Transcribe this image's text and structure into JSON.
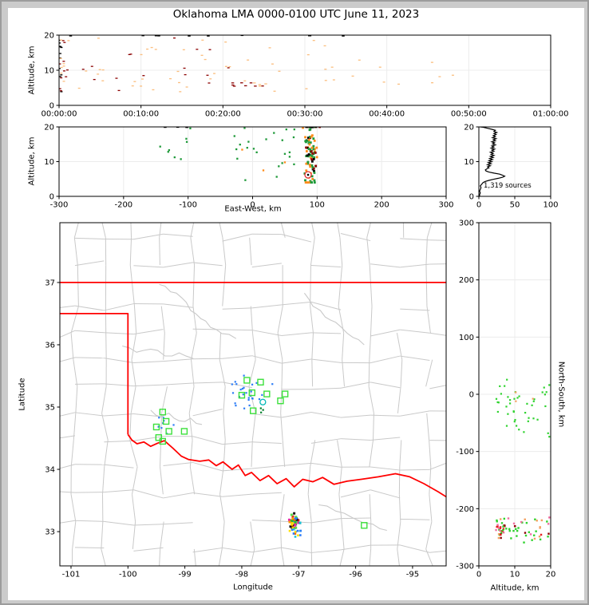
{
  "title": "Oklahoma LMA 0000-0100 UTC June 11, 2023",
  "palette": {
    "light_orange": "#FBBE7E",
    "dark_red": "#8B0000",
    "black": "#000000",
    "green": "#1F9A3A",
    "orange": "#FF8C1A",
    "lime": "#3CE03C",
    "blue": "#2D7DF6",
    "teal": "#00B8B8",
    "grid": "#ECECEC",
    "county": "#C9C9C9",
    "state_red": "#FF0000",
    "frame_bg": "#CBCBCB",
    "frame_border": "#9C9C9C",
    "hist_line": "#000000"
  },
  "chart_data": [
    {
      "id": "time_height_panel",
      "type": "scatter",
      "xlabel": "",
      "ylabel": "Altitude, km",
      "xlim": [
        0,
        3600
      ],
      "ylim": [
        0,
        20
      ],
      "xticks": [
        0,
        600,
        1200,
        1800,
        2400,
        3000,
        3600
      ],
      "xticklabels": [
        "00:00:00",
        "00:10:00",
        "00:20:00",
        "00:30:00",
        "00:40:00",
        "00:50:00",
        "01:00:00"
      ],
      "yticks": [
        0,
        10,
        20
      ],
      "clusters": [
        {
          "n": 14,
          "x": [
            2,
            18
          ],
          "y": [
            3.5,
            19.2
          ],
          "colors": [
            "#000000",
            "#8B0000",
            "#000000"
          ],
          "w": 3,
          "h": 1.3
        },
        {
          "n": 16,
          "x": [
            12,
            70
          ],
          "y": [
            4,
            19
          ],
          "colors": [
            "#FBBE7E",
            "#FBBE7E",
            "#8B0000"
          ],
          "w": 3,
          "h": 1.3
        },
        {
          "n": 46,
          "x": [
            80,
            1250
          ],
          "y": [
            3.8,
            19.4
          ],
          "colors": [
            "#FBBE7E",
            "#FBBE7E",
            "#FBBE7E",
            "#8B0000"
          ],
          "w": 3,
          "h": 1.3
        },
        {
          "n": 12,
          "x": [
            1260,
            1560
          ],
          "y": [
            5.4,
            6.6
          ],
          "colors": [
            "#FBBE7E",
            "#FBBE7E",
            "#8B0000"
          ],
          "w": 3.5,
          "h": 1.3
        },
        {
          "n": 14,
          "x": [
            1300,
            2120
          ],
          "y": [
            4,
            19.5
          ],
          "colors": [
            "#FBBE7E"
          ],
          "w": 3,
          "h": 1.3
        },
        {
          "n": 9,
          "x": [
            2140,
            2900
          ],
          "y": [
            6,
            13.5
          ],
          "colors": [
            "#FBBE7E"
          ],
          "w": 3,
          "h": 1.3
        },
        {
          "n": 10,
          "x": [
            30,
            2150
          ],
          "y": [
            19.75,
            19.95
          ],
          "colors": [
            "#000000"
          ],
          "w": 3.5,
          "h": 1.5
        }
      ]
    },
    {
      "id": "ew_height_panel",
      "type": "scatter",
      "xlabel": "East-West, km",
      "ylabel": "Altitude, km",
      "xlim": [
        -300,
        300
      ],
      "ylim": [
        0,
        20
      ],
      "xticks": [
        -300,
        -200,
        -100,
        0,
        100,
        200,
        300
      ],
      "yticks": [
        0,
        10,
        20
      ],
      "clusters": [
        {
          "n": 8,
          "x": [
            -150,
            -95
          ],
          "y": [
            10,
            19.8
          ],
          "colors": [
            "#1F9A3A"
          ],
          "w": 2.3,
          "h": 2.3
        },
        {
          "n": 26,
          "x": [
            -30,
            65
          ],
          "y": [
            4.5,
            19.8
          ],
          "colors": [
            "#1F9A3A",
            "#1F9A3A",
            "#1F9A3A",
            "#1F9A3A",
            "#FF8C1A"
          ],
          "w": 2.3,
          "h": 2.3
        },
        {
          "n": 95,
          "cx": 90,
          "cy": 12,
          "sx": 5,
          "sy": 5.5,
          "clampx": [
            78,
            104
          ],
          "clampy": [
            4,
            20
          ],
          "colors": [
            "#1F9A3A",
            "#1F9A3A",
            "#1F9A3A",
            "#1F9A3A",
            "#1F9A3A",
            "#FF8C1A",
            "#FF8C1A",
            "#FF8C1A",
            "#8B0000",
            "#000000"
          ],
          "w": 2.8,
          "h": 2.8
        },
        {
          "n": 5,
          "x": [
            75,
            100
          ],
          "y": [
            19.8,
            19.98
          ],
          "colors": [
            "#000000"
          ],
          "w": 3.5,
          "h": 1.6
        },
        {
          "n": 3,
          "x": [
            -140,
            -90
          ],
          "y": [
            19.8,
            19.98
          ],
          "colors": [
            "#000000"
          ],
          "w": 3.5,
          "h": 1.6
        }
      ],
      "circle_marker": {
        "x": 86,
        "y": 6.2,
        "r": 4,
        "stroke": "#E03030"
      }
    },
    {
      "id": "altitude_histogram_panel",
      "type": "line",
      "xlabel": "",
      "ylabel": "",
      "xlim": [
        0,
        100
      ],
      "ylim": [
        0,
        20
      ],
      "xticks": [
        0,
        50,
        100
      ],
      "yticks": [
        0,
        10,
        20
      ],
      "annotation": "1,319 sources",
      "line_alt_count": [
        [
          0,
          1
        ],
        [
          0.5,
          1
        ],
        [
          1,
          2
        ],
        [
          1.5,
          1
        ],
        [
          2,
          2
        ],
        [
          2.5,
          3
        ],
        [
          3,
          2
        ],
        [
          3.5,
          4
        ],
        [
          4,
          6
        ],
        [
          4.3,
          9
        ],
        [
          4.6,
          14
        ],
        [
          4.9,
          20
        ],
        [
          5.2,
          27
        ],
        [
          5.5,
          33
        ],
        [
          5.8,
          36
        ],
        [
          6.1,
          33
        ],
        [
          6.4,
          29
        ],
        [
          6.7,
          21
        ],
        [
          7,
          14
        ],
        [
          7.3,
          10
        ],
        [
          7.6,
          9
        ],
        [
          7.9,
          11
        ],
        [
          8.2,
          14
        ],
        [
          8.5,
          12
        ],
        [
          8.8,
          16
        ],
        [
          9.1,
          12
        ],
        [
          9.4,
          17
        ],
        [
          9.7,
          13
        ],
        [
          10,
          18
        ],
        [
          10.3,
          14
        ],
        [
          10.6,
          19
        ],
        [
          10.9,
          15
        ],
        [
          11.2,
          20
        ],
        [
          11.5,
          16
        ],
        [
          11.8,
          21
        ],
        [
          12.1,
          17
        ],
        [
          12.4,
          20
        ],
        [
          12.7,
          16
        ],
        [
          13,
          21
        ],
        [
          13.3,
          18
        ],
        [
          13.6,
          22
        ],
        [
          13.9,
          17
        ],
        [
          14.2,
          21
        ],
        [
          14.5,
          18
        ],
        [
          14.8,
          23
        ],
        [
          15.1,
          19
        ],
        [
          15.4,
          22
        ],
        [
          15.7,
          18
        ],
        [
          16,
          23
        ],
        [
          16.3,
          20
        ],
        [
          16.6,
          24
        ],
        [
          16.9,
          19
        ],
        [
          17.2,
          23
        ],
        [
          17.5,
          20
        ],
        [
          17.8,
          24
        ],
        [
          18.1,
          21
        ],
        [
          18.4,
          25
        ],
        [
          18.7,
          21
        ],
        [
          19,
          23
        ],
        [
          19.3,
          18
        ],
        [
          19.6,
          12
        ],
        [
          19.9,
          6
        ],
        [
          20,
          2
        ]
      ]
    },
    {
      "id": "plan_view_map",
      "type": "scatter",
      "xlabel": "Longitude",
      "ylabel": "Latitude",
      "xlim": [
        -101.196,
        -94.41
      ],
      "ylim": [
        32.45,
        37.96
      ],
      "xticks": [
        -101,
        -100,
        -99,
        -98,
        -97,
        -96,
        -95
      ],
      "yticks": [
        33,
        34,
        35,
        36,
        37
      ],
      "county_grid": {
        "lons": [
          -100.93,
          -100.42,
          -99.9,
          -99.38,
          -98.86,
          -98.34,
          -97.82,
          -97.3,
          -96.78,
          -96.26,
          -95.74,
          -95.22,
          -94.7
        ],
        "lats": [
          32.72,
          33.16,
          33.6,
          34.04,
          34.47,
          34.9,
          35.33,
          35.76,
          36.19,
          36.62,
          37.28,
          37.72
        ],
        "jitter": 0.07,
        "drop": 0.18
      },
      "rivers": [
        [
          [
            -99.45,
            36.97
          ],
          [
            -99.25,
            36.85
          ],
          [
            -99.05,
            36.75
          ],
          [
            -98.9,
            36.55
          ],
          [
            -98.72,
            36.42
          ],
          [
            -98.55,
            36.28
          ],
          [
            -98.35,
            36.18
          ],
          [
            -98.1,
            36.1
          ]
        ],
        [
          [
            -96.9,
            36.83
          ],
          [
            -96.75,
            36.62
          ],
          [
            -96.62,
            36.55
          ],
          [
            -96.45,
            36.4
          ],
          [
            -96.25,
            36.28
          ],
          [
            -96.05,
            36.12
          ],
          [
            -95.85,
            36.0
          ]
        ],
        [
          [
            -100.1,
            35.98
          ],
          [
            -99.85,
            35.88
          ],
          [
            -99.6,
            35.93
          ],
          [
            -99.35,
            35.82
          ],
          [
            -99.1,
            35.87
          ],
          [
            -98.85,
            35.78
          ]
        ],
        [
          [
            -99.6,
            34.95
          ],
          [
            -99.42,
            34.84
          ],
          [
            -99.28,
            34.9
          ],
          [
            -99.1,
            34.78
          ],
          [
            -98.9,
            34.82
          ],
          [
            -98.7,
            34.72
          ]
        ],
        [
          [
            -96.65,
            33.43
          ],
          [
            -96.35,
            33.33
          ],
          [
            -96.05,
            33.22
          ],
          [
            -95.7,
            33.12
          ],
          [
            -95.45,
            33.02
          ]
        ]
      ],
      "state_border": [
        [
          [
            -101.196,
            37.0
          ],
          [
            -94.41,
            37.0
          ]
        ],
        [
          [
            -101.196,
            36.5
          ],
          [
            -100.0,
            36.5
          ],
          [
            -100.0,
            34.56
          ]
        ],
        [
          [
            -100.0,
            34.56
          ],
          [
            -99.93,
            34.47
          ],
          [
            -99.84,
            34.41
          ],
          [
            -99.72,
            34.44
          ],
          [
            -99.6,
            34.37
          ],
          [
            -99.48,
            34.42
          ],
          [
            -99.36,
            34.46
          ],
          [
            -99.21,
            34.34
          ],
          [
            -99.06,
            34.21
          ],
          [
            -98.94,
            34.16
          ],
          [
            -98.74,
            34.13
          ],
          [
            -98.58,
            34.15
          ],
          [
            -98.45,
            34.06
          ],
          [
            -98.33,
            34.12
          ],
          [
            -98.17,
            34.0
          ],
          [
            -98.06,
            34.07
          ],
          [
            -97.94,
            33.9
          ],
          [
            -97.83,
            33.95
          ],
          [
            -97.68,
            33.82
          ],
          [
            -97.53,
            33.9
          ],
          [
            -97.38,
            33.77
          ],
          [
            -97.22,
            33.85
          ],
          [
            -97.08,
            33.72
          ],
          [
            -96.93,
            33.84
          ],
          [
            -96.75,
            33.8
          ],
          [
            -96.58,
            33.87
          ],
          [
            -96.38,
            33.76
          ],
          [
            -96.15,
            33.81
          ],
          [
            -95.9,
            33.84
          ],
          [
            -95.6,
            33.88
          ],
          [
            -95.3,
            33.93
          ],
          [
            -95.05,
            33.88
          ],
          [
            -94.8,
            33.77
          ],
          [
            -94.55,
            33.64
          ],
          [
            -94.41,
            33.56
          ]
        ]
      ],
      "green_squares": [
        [
          -97.91,
          35.43
        ],
        [
          -97.67,
          35.4
        ],
        [
          -98.0,
          35.19
        ],
        [
          -97.82,
          35.23
        ],
        [
          -97.56,
          35.21
        ],
        [
          -97.32,
          35.1
        ],
        [
          -97.24,
          35.21
        ],
        [
          -97.8,
          34.94
        ],
        [
          -99.39,
          34.92
        ],
        [
          -99.33,
          34.77
        ],
        [
          -99.5,
          34.68
        ],
        [
          -99.28,
          34.61
        ],
        [
          -99.46,
          34.51
        ],
        [
          -99.39,
          34.45
        ],
        [
          -99.01,
          34.61
        ],
        [
          -95.85,
          33.1
        ]
      ],
      "teal_circle": [
        -97.63,
        35.08
      ],
      "clusters": [
        {
          "n": 26,
          "cx": -97.93,
          "cy": 35.22,
          "sx": 0.2,
          "sy": 0.12,
          "colors": [
            "#2D7DF6"
          ],
          "w": 2.2,
          "h": 2.2
        },
        {
          "n": 9,
          "cx": -99.37,
          "cy": 34.7,
          "sx": 0.09,
          "sy": 0.13,
          "colors": [
            "#2D7DF6"
          ],
          "w": 2.2,
          "h": 2.2
        },
        {
          "n": 3,
          "cx": -97.62,
          "cy": 34.93,
          "sx": 0.04,
          "sy": 0.05,
          "colors": [
            "#007F2A"
          ],
          "w": 2.2,
          "h": 2.2
        },
        {
          "n": 42,
          "cx": -97.06,
          "cy": 33.16,
          "sx": 0.05,
          "sy": 0.07,
          "colors": [
            "#E62020",
            "#FF9900",
            "#FFE100",
            "#2ABB2A",
            "#59E34A",
            "#2D7DF6",
            "#19C5DC",
            "#E62AA8",
            "#111111",
            "#FF6600"
          ],
          "w": 3,
          "h": 3
        },
        {
          "n": 12,
          "cx": -97.03,
          "cy": 32.97,
          "sx": 0.07,
          "sy": 0.055,
          "colors": [
            "#2D7DF6",
            "#FFE100",
            "#19C5DC",
            "#2D7DF6"
          ],
          "w": 2.6,
          "h": 2.6
        }
      ]
    },
    {
      "id": "ns_height_panel",
      "type": "scatter",
      "xlabel": "Altitude, km",
      "ylabel": "North-South, km",
      "xlim": [
        0,
        20
      ],
      "ylim": [
        -300,
        300
      ],
      "xticks": [
        0,
        10,
        20
      ],
      "yticks": [
        -300,
        -200,
        -100,
        0,
        100,
        200,
        300
      ],
      "clusters": [
        {
          "n": 30,
          "x": [
            4.5,
            20
          ],
          "y": [
            -35,
            28
          ],
          "colors": [
            "#2FD32F"
          ],
          "w": 2.2,
          "h": 2.2
        },
        {
          "n": 12,
          "x": [
            5,
            20
          ],
          "y": [
            -75,
            -40
          ],
          "colors": [
            "#2FD32F"
          ],
          "w": 2.2,
          "h": 2.2
        },
        {
          "n": 3,
          "x": [
            5,
            18
          ],
          "y": [
            -20,
            25
          ],
          "colors": [
            "#F4A261"
          ],
          "w": 2.2,
          "h": 2.2
        },
        {
          "n": 50,
          "x": [
            4.5,
            20
          ],
          "y": [
            -262,
            -214
          ],
          "colors": [
            "#2FD32F",
            "#2FD32F",
            "#2FD32F",
            "#2FD32F",
            "#E62020",
            "#F06FA0",
            "#F4A261",
            "#8B0000"
          ],
          "w": 2.4,
          "h": 2.4
        },
        {
          "n": 22,
          "cx": 6.5,
          "cy": -236,
          "sx": 1.2,
          "sy": 7,
          "colors": [
            "#2FD32F",
            "#2FD32F",
            "#E62020",
            "#F06FA0",
            "#8B0000"
          ],
          "w": 2.4,
          "h": 2.4
        }
      ]
    }
  ]
}
